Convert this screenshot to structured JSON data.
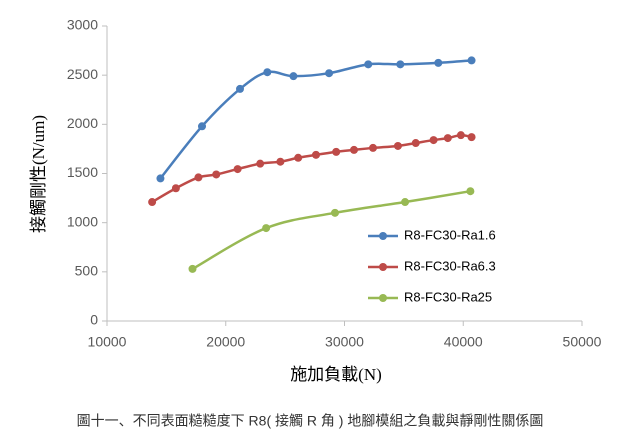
{
  "chart_data": {
    "type": "line",
    "x_label": "施加負載(N)",
    "y_label": "接觸剛性(N/um)",
    "caption": "圖十一、不同表面糙糙度下 R8( 接觸 R 角 ) 地腳模組之負載與靜剛性關係圖",
    "xlim": [
      10000,
      50000
    ],
    "xticks": [
      10000,
      20000,
      30000,
      40000,
      50000
    ],
    "ylim": [
      0,
      3000
    ],
    "yticks": [
      0,
      500,
      1000,
      1500,
      2000,
      2500,
      3000
    ],
    "grid": false,
    "legend": "right",
    "series": [
      {
        "name": "R8-FC30-Ra1.6",
        "color": "#4a7ebb",
        "x": [
          14500,
          18000,
          21200,
          23500,
          25700,
          28700,
          32000,
          34700,
          37900,
          40700
        ],
        "values": [
          1450,
          1980,
          2360,
          2530,
          2490,
          2520,
          2610,
          2610,
          2625,
          2650
        ]
      },
      {
        "name": "R8-FC30-Ra6.3",
        "color": "#be4b48",
        "x": [
          13800,
          15800,
          17700,
          19200,
          21000,
          22900,
          24600,
          26100,
          27600,
          29300,
          30800,
          32400,
          34500,
          36000,
          37500,
          38700,
          39800,
          40700
        ],
        "values": [
          1210,
          1350,
          1460,
          1490,
          1545,
          1600,
          1620,
          1660,
          1690,
          1720,
          1740,
          1760,
          1780,
          1810,
          1840,
          1860,
          1890,
          1870
        ]
      },
      {
        "name": "R8-FC30-Ra25",
        "color": "#98b954",
        "x": [
          17200,
          23400,
          29200,
          35100,
          40600
        ],
        "values": [
          530,
          945,
          1100,
          1210,
          1320
        ]
      }
    ]
  }
}
